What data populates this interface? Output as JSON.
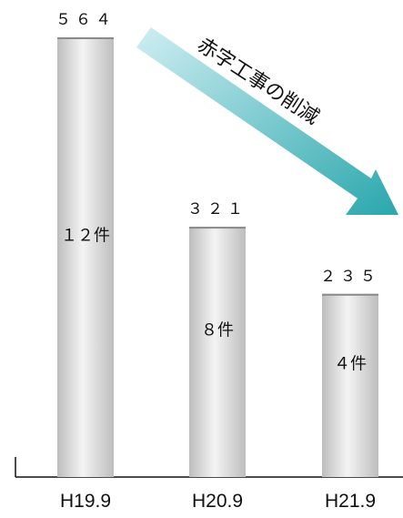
{
  "chart_data": {
    "type": "bar",
    "categories": [
      "H19.9",
      "H20.9",
      "H21.9"
    ],
    "values": [
      564,
      321,
      235
    ],
    "value_labels": [
      "５６４",
      "３２１",
      "２３５"
    ],
    "bar_labels": [
      "１２件",
      "８件",
      "４件"
    ],
    "annotation": "赤字工事の削減",
    "title": "",
    "xlabel": "",
    "ylabel": "",
    "ylim": [
      0,
      564
    ],
    "grid": false,
    "colors": {
      "bar_light": "#f4f4f4",
      "bar_dark": "#bdbdbd",
      "bar_cap": "#8a8a8a",
      "arrow_start": "#cfeef2",
      "arrow_end": "#29a7ad"
    }
  }
}
